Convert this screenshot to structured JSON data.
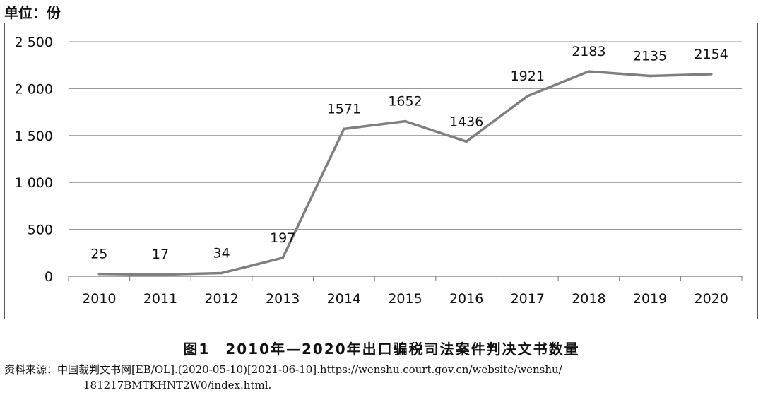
{
  "unit_label": "单位：份",
  "caption": "图1　2010年—2020年出口骗税司法案件判决文书数量",
  "source_line1": "资料来源：中国裁判文书网[EB/OL].(2020-05-10)[2021-06-10].https://wenshu.court.gov.cn/website/wenshu/",
  "source_line2": "181217BMTKHNT2W0/index.html.",
  "chart_data": {
    "type": "line",
    "title": "",
    "xlabel": "",
    "ylabel": "",
    "categories": [
      "2010",
      "2011",
      "2012",
      "2013",
      "2014",
      "2015",
      "2016",
      "2017",
      "2018",
      "2019",
      "2020"
    ],
    "values": [
      25,
      17,
      34,
      197,
      1571,
      1652,
      1436,
      1921,
      2183,
      2135,
      2154
    ],
    "data_labels": [
      "25",
      "17",
      "34",
      "197",
      "1571",
      "1652",
      "1436",
      "1921",
      "2183",
      "2135",
      "2154"
    ],
    "ylim": [
      0,
      2500
    ],
    "yticks": [
      0,
      500,
      1000,
      1500,
      2000,
      2500
    ],
    "ytick_labels": [
      "0",
      "500",
      "1 000",
      "1 500",
      "2 000",
      "2 500"
    ],
    "grid": true,
    "line_color": "#7f7f7f",
    "grid_color": "#8c8c8c"
  }
}
